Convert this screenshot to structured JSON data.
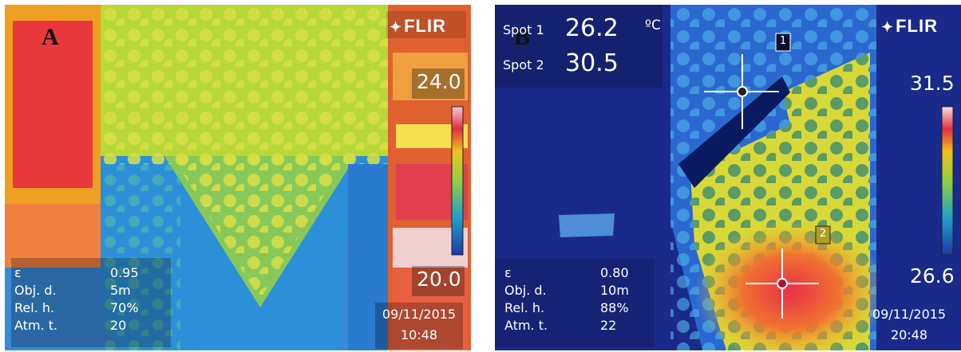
{
  "panel_a": {
    "letter": "A",
    "brand": "FLIR",
    "scale_max": "24.0",
    "scale_min": "20.0",
    "params": [
      {
        "label": "ε",
        "value": "0.95"
      },
      {
        "label": "Obj. d.",
        "value": "5m"
      },
      {
        "label": "Rel. h.",
        "value": "70%"
      },
      {
        "label": "Atm. t.",
        "value": "20"
      }
    ],
    "date": "09/11/2015",
    "time": "10:48"
  },
  "panel_b": {
    "letter": "B",
    "brand": "FLIR",
    "spot1_label": "Spot 1",
    "spot1_value": "26.2",
    "spot2_label": "Spot 2",
    "spot2_value": "30.5",
    "unit": "ºC",
    "marker1": "1",
    "marker2": "2",
    "scale_max": "31.5",
    "scale_min": "26.6",
    "params": [
      {
        "label": "ε",
        "value": "0.80"
      },
      {
        "label": "Obj. d.",
        "value": "10m"
      },
      {
        "label": "Rel. h.",
        "value": "88%"
      },
      {
        "label": "Atm. t.",
        "value": "22"
      }
    ],
    "date": "09/11/2015",
    "time": "20:48"
  },
  "colors": {
    "cold": "#1d47c8",
    "cool": "#2aa8d8",
    "mid": "#c8e030",
    "warm": "#f0c020",
    "hot": "#e03030",
    "hottest": "#ff90b0"
  },
  "icons": [
    "flir-logo-icon",
    "crosshair-icon",
    "color-scale-bar-icon"
  ]
}
